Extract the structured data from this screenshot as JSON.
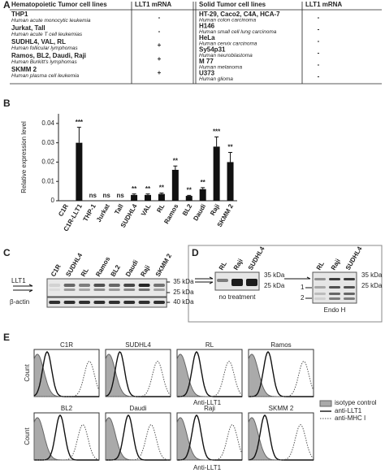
{
  "panel_labels": [
    "A",
    "B",
    "C",
    "D",
    "E"
  ],
  "table": {
    "left_header": [
      "Hematopoietic Tumor cell lines",
      "LLT1 mRNA"
    ],
    "right_header": [
      "Solid Tumor cell lines",
      "LLT1 mRNA"
    ],
    "left_rows": [
      {
        "name": "THP1",
        "desc": "Human acute monocytic leukemia",
        "mrna": "-"
      },
      {
        "name": "Jurkat, Tall",
        "desc": "Human acute T cell leukemias",
        "mrna": "-"
      },
      {
        "name": "SUDHL4, VAL, RL",
        "desc": "Human follicular lymphomas",
        "mrna": "+"
      },
      {
        "name": "Ramos, BL2, Daudi, Raji",
        "desc": "Human Burkitt's lymphomas",
        "mrna": "+"
      },
      {
        "name": "SKMM 2",
        "desc": "Human plasma cell leukemia",
        "mrna": "+"
      }
    ],
    "right_rows": [
      {
        "name": "HT-29, Caco2, C4A, HCA-7",
        "desc": "Human colon carcinoma",
        "mrna": "-"
      },
      {
        "name": "H146",
        "desc": "Human small cell lung carcinoma",
        "mrna": "-"
      },
      {
        "name": "HeLa",
        "desc": "Human cervix carcinoma",
        "mrna": "-"
      },
      {
        "name": "Sy54p31",
        "desc": "Human neuroblastoma",
        "mrna": "-"
      },
      {
        "name": "M 77",
        "desc": "Human melanoma",
        "mrna": "-"
      },
      {
        "name": "U373",
        "desc": "Human glioma",
        "mrna": "-"
      }
    ]
  },
  "chart_data": {
    "type": "bar",
    "y_label": "Relative expression level",
    "categories": [
      "C1R",
      "C1R-LLT1",
      "THP-1",
      "Jurkat",
      "Tall",
      "SUDHL4",
      "VAL",
      "RL",
      "Ramos",
      "BL2",
      "Daudi",
      "Raji",
      "SKMM 2"
    ],
    "values": [
      0,
      0.03,
      0,
      0,
      0,
      0.003,
      0.003,
      0.0035,
      0.016,
      0.0025,
      0.006,
      0.028,
      0.02
    ],
    "errors": [
      null,
      0.008,
      null,
      null,
      null,
      0.0005,
      0.0005,
      0.0005,
      0.002,
      0.0003,
      0.0008,
      0.005,
      0.005
    ],
    "annotations": [
      null,
      "***",
      "ns",
      "ns",
      "ns",
      "**",
      "**",
      "**",
      "**",
      "**",
      "**",
      "***",
      "**"
    ],
    "color": "#111111",
    "ylim": [
      0,
      0.045
    ],
    "yticks": [
      0,
      0.01,
      0.02,
      0.03,
      0.04
    ]
  },
  "blot_c": {
    "lanes": [
      "C1R",
      "SUDHL4",
      "RL",
      "Ramos",
      "BL2",
      "Daudi",
      "Raji",
      "SKMM 2"
    ],
    "target": "LLT1",
    "control": "β-actin",
    "markers": [
      "35 kDa",
      "25 kDa",
      "40 kDa"
    ]
  },
  "blot_d": {
    "lanes": [
      "RL",
      "Raji",
      "SUDHL4"
    ],
    "conditions": [
      "no treatment",
      "Endo  H"
    ],
    "markers": [
      "35 kDa",
      "25 kDa"
    ],
    "bands": [
      "1",
      "2"
    ]
  },
  "flow": {
    "titles": [
      "C1R",
      "SUDHL4",
      "RL",
      "Ramos",
      "BL2",
      "Daudi",
      "Raji",
      "SKMM  2"
    ],
    "y_label": "Count",
    "x_label": "Anti-LLT1",
    "legend": [
      "isotype control",
      "anti-LLT1",
      "anti-MHC  I"
    ]
  }
}
